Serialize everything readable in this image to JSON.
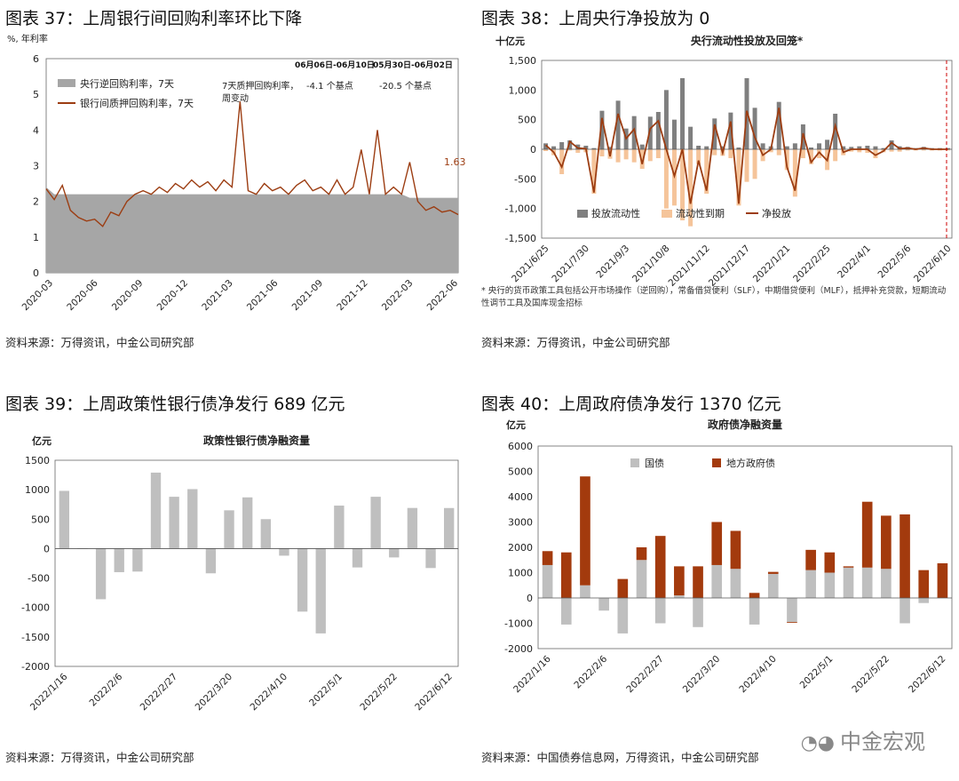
{
  "panels": {
    "p37": {
      "title": "图表 37：上周银行间回购利率环比下降",
      "source": "资料来源：万得资讯，中金公司研究部"
    },
    "p38": {
      "title": "图表 38：上周央行净投放为 0",
      "source": "资料来源：万得资讯，中金公司研究部",
      "footnote": "* 央行的货币政策工具包括公开市场操作（逆回购），常备借贷便利（SLF），中期借贷便利（MLF），抵押补充贷款，短期流动性调节工具及国库现金招标"
    },
    "p39": {
      "title": "图表 39：上周政策性银行债净发行 689 亿元",
      "source": "资料来源：万得资讯，中金公司研究部"
    },
    "p40": {
      "title": "图表 40：上周政府债净发行 1370 亿元",
      "source": "资料来源：中国债券信息网，万得资讯，中金公司研究部"
    }
  },
  "watermark": "中金宏观",
  "chart_data": [
    {
      "id": "chart37",
      "type": "area",
      "ylabel": "%, 年利率",
      "ylim": [
        0,
        6
      ],
      "yticks": [
        "0",
        "1",
        "2",
        "3",
        "4",
        "5",
        "6"
      ],
      "xticks": [
        "2020-03",
        "2020-06",
        "2020-09",
        "2020-12",
        "2021-03",
        "2021-06",
        "2021-09",
        "2021-12",
        "2022-03",
        "2022-06"
      ],
      "table": {
        "headers": [
          "06月06日-06月10日",
          "05月30日-06月02日"
        ],
        "row_label": "7天质押回购利率，周变动",
        "values": [
          "-4.1 个基点",
          "-20.5 个基点"
        ]
      },
      "end_label": "1.63",
      "legend_position": "top-left",
      "series": [
        {
          "name": "央行逆回购利率，7天",
          "color": "#a6a6a6",
          "values": [
            2.4,
            2.2,
            2.2,
            2.2,
            2.2,
            2.2,
            2.2,
            2.2,
            2.2,
            2.2,
            2.2,
            2.2,
            2.2,
            2.2,
            2.2,
            2.2,
            2.2,
            2.2,
            2.2,
            2.2,
            2.2,
            2.2,
            2.2,
            2.2,
            2.2,
            2.2,
            2.2,
            2.2,
            2.2,
            2.2,
            2.2,
            2.2,
            2.2,
            2.2,
            2.2,
            2.2,
            2.2,
            2.2,
            2.2,
            2.2,
            2.2,
            2.2,
            2.2,
            2.2,
            2.2,
            2.1,
            2.1,
            2.1,
            2.1,
            2.1,
            2.1,
            2.1
          ]
        },
        {
          "name": "银行间质押回购利率，7天",
          "color": "#9c3d12",
          "values": [
            2.35,
            2.05,
            2.45,
            1.75,
            1.55,
            1.45,
            1.5,
            1.3,
            1.7,
            1.6,
            2.0,
            2.2,
            2.3,
            2.2,
            2.4,
            2.25,
            2.5,
            2.35,
            2.6,
            2.4,
            2.55,
            2.3,
            2.6,
            2.4,
            4.8,
            2.3,
            2.2,
            2.5,
            2.3,
            2.4,
            2.2,
            2.45,
            2.6,
            2.3,
            2.4,
            2.2,
            2.6,
            2.2,
            2.4,
            3.45,
            2.2,
            4.0,
            2.2,
            2.4,
            2.2,
            3.1,
            2.0,
            1.75,
            1.85,
            1.7,
            1.75,
            1.63
          ]
        }
      ]
    },
    {
      "id": "chart38",
      "type": "bar",
      "title": "央行流动性投放及回笼*",
      "ylabel": "十亿元",
      "ylim": [
        -1500,
        1500
      ],
      "yticks": [
        "-1,500",
        "-1,000",
        "-500",
        "0",
        "500",
        "1,000",
        "1,500"
      ],
      "categories": [
        "2021/6/25",
        "",
        "",
        "",
        "",
        "2021/7/30",
        "",
        "",
        "",
        "",
        "2021/9/3",
        "",
        "",
        "",
        "",
        "2021/10/8",
        "",
        "",
        "",
        "",
        "2021/11/12",
        "",
        "",
        "",
        "",
        "2021/12/17",
        "",
        "",
        "",
        "",
        "2022/1/21",
        "",
        "",
        "",
        "",
        "2022/2/25",
        "",
        "",
        "",
        "",
        "2022/4/1",
        "",
        "",
        "",
        "",
        "2022/5/6",
        "",
        "",
        "",
        "",
        "2022/6/10"
      ],
      "series": [
        {
          "name": "投放流动性",
          "color": "#7f7f7f",
          "values": [
            100,
            50,
            120,
            150,
            80,
            60,
            20,
            650,
            40,
            820,
            350,
            560,
            80,
            550,
            630,
            1000,
            500,
            1200,
            380,
            60,
            50,
            520,
            50,
            620,
            30,
            1200,
            700,
            100,
            50,
            800,
            50,
            100,
            420,
            30,
            100,
            160,
            600,
            50,
            40,
            50,
            60,
            50,
            20,
            150,
            50,
            40,
            20,
            40,
            20,
            20,
            20
          ]
        },
        {
          "name": "流动性到期",
          "color": "#f5c49a",
          "values": [
            -30,
            -100,
            -420,
            -20,
            -60,
            -50,
            -750,
            -120,
            -160,
            -220,
            -170,
            -220,
            -330,
            -200,
            -150,
            -1000,
            -950,
            -1200,
            -1300,
            -250,
            -750,
            -100,
            -110,
            -150,
            -950,
            -550,
            -500,
            -200,
            -50,
            -100,
            -350,
            -800,
            -150,
            -250,
            -150,
            -350,
            -200,
            -100,
            -40,
            -50,
            -60,
            -150,
            -50,
            -40,
            -40,
            -20,
            -20,
            -20,
            -20,
            -20,
            -20
          ]
        },
        {
          "name": "净投放",
          "color": "#9c3d12",
          "type": "line",
          "values": [
            70,
            -50,
            -300,
            130,
            20,
            10,
            -730,
            530,
            -120,
            600,
            180,
            340,
            -250,
            350,
            480,
            0,
            -450,
            0,
            -920,
            -190,
            -700,
            420,
            -60,
            470,
            -920,
            650,
            200,
            -100,
            0,
            700,
            -300,
            -700,
            270,
            -220,
            -50,
            -190,
            400,
            -50,
            0,
            0,
            0,
            -100,
            -30,
            110,
            10,
            20,
            0,
            20,
            0,
            0,
            0
          ]
        }
      ]
    },
    {
      "id": "chart39",
      "type": "bar",
      "title": "政策性银行债净融资量",
      "ylabel": "亿元",
      "ylim": [
        -2000,
        1500
      ],
      "yticks": [
        "-2000",
        "-1500",
        "-1000",
        "-500",
        "0",
        "500",
        "1000",
        "1500"
      ],
      "categories": [
        "2022/1/16",
        "",
        "",
        "2022/2/6",
        "",
        "",
        "2022/2/27",
        "",
        "",
        "2022/3/20",
        "",
        "",
        "2022/4/10",
        "",
        "",
        "2022/5/1",
        "",
        "",
        "2022/5/22",
        "",
        "",
        "2022/6/12"
      ],
      "series": [
        {
          "name": "",
          "color": "#bfbfbf",
          "values": [
            980,
            0,
            -860,
            -400,
            -390,
            1290,
            880,
            1010,
            -420,
            650,
            870,
            500,
            -120,
            -1070,
            -1440,
            730,
            -320,
            880,
            -150,
            690,
            -330,
            689
          ]
        }
      ]
    },
    {
      "id": "chart40",
      "type": "bar",
      "title": "政府债净融资量",
      "ylabel": "亿元",
      "ylim": [
        -2000,
        6000
      ],
      "yticks": [
        "-2000",
        "-1000",
        "0",
        "1000",
        "2000",
        "3000",
        "4000",
        "5000",
        "6000"
      ],
      "categories": [
        "2022/1/16",
        "",
        "",
        "2022/2/6",
        "",
        "",
        "2022/2/27",
        "",
        "",
        "2022/3/20",
        "",
        "",
        "2022/4/10",
        "",
        "",
        "2022/5/1",
        "",
        "",
        "2022/5/22",
        "",
        "",
        "2022/6/12"
      ],
      "legend_position": "top-left",
      "series": [
        {
          "name": "国债",
          "color": "#bfbfbf",
          "values": [
            1300,
            -1050,
            500,
            -500,
            -1400,
            1500,
            -1000,
            100,
            -1150,
            1300,
            1150,
            -1050,
            950,
            -950,
            1100,
            1000,
            1200,
            1200,
            1150,
            -1000,
            -200,
            0
          ]
        },
        {
          "name": "地方政府债",
          "color": "#a33a0d",
          "values": [
            550,
            1800,
            4300,
            0,
            750,
            500,
            2450,
            1150,
            1250,
            1700,
            1500,
            200,
            80,
            -30,
            800,
            800,
            50,
            2600,
            2100,
            3300,
            1100,
            1370
          ]
        }
      ]
    }
  ]
}
